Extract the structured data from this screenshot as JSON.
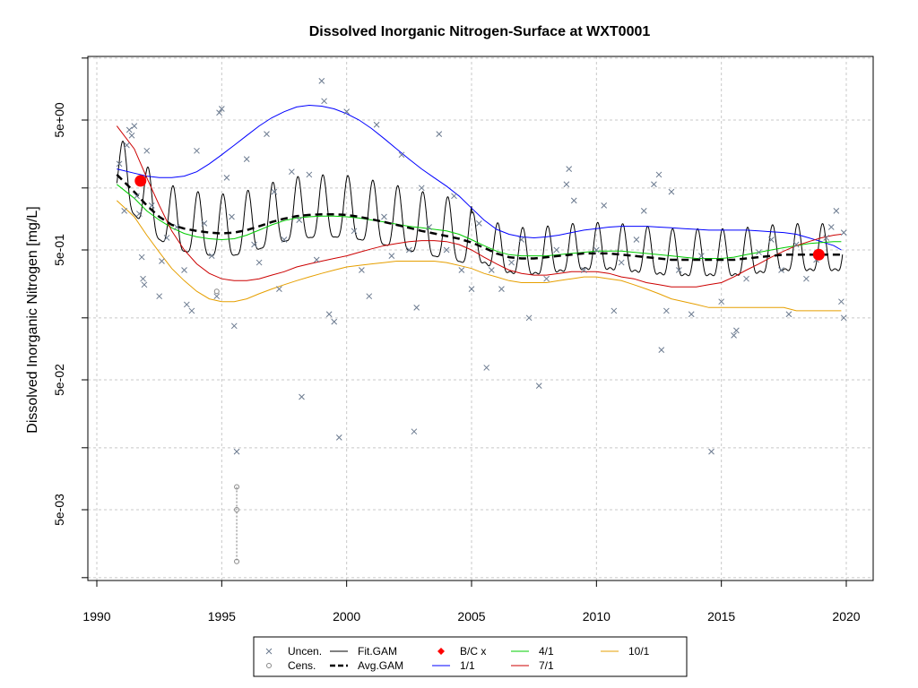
{
  "chart_data": {
    "type": "line",
    "title": "Dissolved Inorganic Nitrogen-Surface at WXT0001",
    "xlabel": "",
    "ylabel": "Dissolved Inorganic Nitrogen [mg/L]",
    "y_scale": "log10",
    "xlim": [
      1990,
      2021
    ],
    "ylim": [
      0.0013,
      12
    ],
    "grid": true,
    "x_ticks": [
      1990,
      1995,
      2000,
      2005,
      2010,
      2015,
      2020
    ],
    "x_tick_labels": [
      "1990",
      "1995",
      "2000",
      "2005",
      "2010",
      "2015",
      "2020"
    ],
    "y_ticks": [
      0.005,
      0.05,
      0.5,
      5
    ],
    "y_tick_labels": [
      "5e-03",
      "5e-02",
      "5e-01",
      "5e+00"
    ],
    "y_minor_ticks": [
      0.0015,
      0.015,
      0.15,
      1.5,
      15
    ],
    "legend": {
      "position": "bottom",
      "entries": [
        {
          "label": "Uncen.",
          "symbol": "cross",
          "color": "#6b7a8f"
        },
        {
          "label": "Cens.",
          "symbol": "circle",
          "color": "#888888"
        },
        {
          "label": "Fit.GAM",
          "symbol": "line",
          "color": "#000000"
        },
        {
          "label": "Avg.GAM",
          "symbol": "dashed",
          "color": "#000000"
        },
        {
          "label": "B/C x",
          "symbol": "diamond",
          "color": "#ff0000"
        },
        {
          "label": "1/1",
          "symbol": "line",
          "color": "#0000ff"
        },
        {
          "label": "4/1",
          "symbol": "line",
          "color": "#00cc00"
        },
        {
          "label": "7/1",
          "symbol": "line",
          "color": "#cc0000"
        },
        {
          "label": "10/1",
          "symbol": "line",
          "color": "#e69f00"
        }
      ]
    },
    "series": [
      {
        "name": "1/1",
        "color": "#0000ff",
        "x": [
          1990.8,
          1991.5,
          1992.0,
          1992.5,
          1993.0,
          1993.5,
          1994.0,
          1994.5,
          1995.0,
          1995.5,
          1996.0,
          1996.5,
          1997.0,
          1997.5,
          1998.0,
          1998.5,
          1999.0,
          1999.5,
          2000.0,
          2000.5,
          2001.0,
          2001.5,
          2002.0,
          2002.5,
          2003.0,
          2003.5,
          2004.0,
          2004.5,
          2005.0,
          2005.5,
          2006.0,
          2006.5,
          2007.0,
          2007.5,
          2008.0,
          2008.5,
          2009.0,
          2009.5,
          2010.0,
          2010.5,
          2011.0,
          2011.5,
          2012.0,
          2012.5,
          2013.0,
          2013.5,
          2014.0,
          2014.5,
          2015.0,
          2015.5,
          2016.0,
          2016.5,
          2017.0,
          2017.5,
          2018.0,
          2018.5,
          2019.0,
          2019.5,
          2019.8
        ],
        "y": [
          2.1,
          1.95,
          1.85,
          1.8,
          1.8,
          1.85,
          2.0,
          2.3,
          2.7,
          3.2,
          3.8,
          4.5,
          5.2,
          5.8,
          6.3,
          6.5,
          6.4,
          6.1,
          5.6,
          5.0,
          4.3,
          3.6,
          3.0,
          2.5,
          2.1,
          1.8,
          1.55,
          1.3,
          1.05,
          0.85,
          0.72,
          0.66,
          0.63,
          0.62,
          0.63,
          0.65,
          0.68,
          0.71,
          0.73,
          0.75,
          0.76,
          0.76,
          0.76,
          0.75,
          0.74,
          0.73,
          0.72,
          0.71,
          0.71,
          0.71,
          0.71,
          0.7,
          0.69,
          0.68,
          0.66,
          0.62,
          0.58,
          0.54,
          0.5
        ]
      },
      {
        "name": "4/1",
        "color": "#00cc00",
        "x": [
          1990.8,
          1991.5,
          1992.0,
          1992.5,
          1993.0,
          1993.5,
          1994.0,
          1994.5,
          1995.0,
          1995.5,
          1996.0,
          1996.5,
          1997.0,
          1997.5,
          1998.0,
          1998.5,
          1999.0,
          1999.5,
          2000.0,
          2000.5,
          2001.0,
          2001.5,
          2002.0,
          2002.5,
          2003.0,
          2003.5,
          2004.0,
          2004.5,
          2005.0,
          2005.5,
          2006.0,
          2006.5,
          2007.0,
          2007.5,
          2008.0,
          2008.5,
          2009.0,
          2009.5,
          2010.0,
          2010.5,
          2011.0,
          2011.5,
          2012.0,
          2012.5,
          2013.0,
          2013.5,
          2014.0,
          2014.5,
          2015.0,
          2015.5,
          2016.0,
          2016.5,
          2017.0,
          2017.5,
          2018.0,
          2018.5,
          2019.0,
          2019.5,
          2019.8
        ],
        "y": [
          1.6,
          1.25,
          1.0,
          0.85,
          0.74,
          0.67,
          0.63,
          0.61,
          0.6,
          0.61,
          0.65,
          0.71,
          0.78,
          0.84,
          0.88,
          0.9,
          0.91,
          0.91,
          0.9,
          0.88,
          0.85,
          0.82,
          0.79,
          0.76,
          0.74,
          0.72,
          0.7,
          0.66,
          0.6,
          0.54,
          0.49,
          0.46,
          0.45,
          0.45,
          0.45,
          0.46,
          0.47,
          0.48,
          0.49,
          0.49,
          0.49,
          0.48,
          0.47,
          0.46,
          0.45,
          0.44,
          0.43,
          0.43,
          0.43,
          0.44,
          0.46,
          0.48,
          0.5,
          0.52,
          0.54,
          0.56,
          0.57,
          0.58,
          0.58
        ]
      },
      {
        "name": "7/1",
        "color": "#cc0000",
        "x": [
          1990.8,
          1991.5,
          1992.0,
          1992.5,
          1993.0,
          1993.5,
          1994.0,
          1994.5,
          1995.0,
          1995.5,
          1996.0,
          1996.5,
          1997.0,
          1997.5,
          1998.0,
          1998.5,
          1999.0,
          1999.5,
          2000.0,
          2000.5,
          2001.0,
          2001.5,
          2002.0,
          2002.5,
          2003.0,
          2003.5,
          2004.0,
          2004.5,
          2005.0,
          2005.5,
          2006.0,
          2006.5,
          2007.0,
          2007.5,
          2008.0,
          2008.5,
          2009.0,
          2009.5,
          2010.0,
          2010.5,
          2011.0,
          2011.5,
          2012.0,
          2012.5,
          2013.0,
          2013.5,
          2014.0,
          2014.5,
          2015.0,
          2015.5,
          2016.0,
          2016.5,
          2017.0,
          2017.5,
          2018.0,
          2018.5,
          2019.0,
          2019.5,
          2019.8
        ],
        "y": [
          4.5,
          3.0,
          1.8,
          1.1,
          0.7,
          0.5,
          0.39,
          0.33,
          0.3,
          0.29,
          0.29,
          0.3,
          0.32,
          0.34,
          0.37,
          0.39,
          0.41,
          0.43,
          0.45,
          0.48,
          0.51,
          0.54,
          0.56,
          0.58,
          0.59,
          0.59,
          0.58,
          0.55,
          0.5,
          0.44,
          0.39,
          0.35,
          0.33,
          0.32,
          0.32,
          0.33,
          0.34,
          0.34,
          0.34,
          0.33,
          0.31,
          0.3,
          0.28,
          0.27,
          0.26,
          0.26,
          0.26,
          0.27,
          0.28,
          0.31,
          0.35,
          0.39,
          0.44,
          0.49,
          0.54,
          0.58,
          0.62,
          0.65,
          0.66
        ]
      },
      {
        "name": "10/1",
        "color": "#e69f00",
        "x": [
          1990.8,
          1991.5,
          1992.0,
          1992.5,
          1993.0,
          1993.5,
          1994.0,
          1994.5,
          1995.0,
          1995.5,
          1996.0,
          1996.5,
          1997.0,
          1997.5,
          1998.0,
          1998.5,
          1999.0,
          1999.5,
          2000.0,
          2000.5,
          2001.0,
          2001.5,
          2002.0,
          2002.5,
          2003.0,
          2003.5,
          2004.0,
          2004.5,
          2005.0,
          2005.5,
          2006.0,
          2006.5,
          2007.0,
          2007.5,
          2008.0,
          2008.5,
          2009.0,
          2009.5,
          2010.0,
          2010.5,
          2011.0,
          2011.5,
          2012.0,
          2012.5,
          2013.0,
          2013.5,
          2014.0,
          2014.5,
          2015.0,
          2015.5,
          2016.0,
          2016.5,
          2017.0,
          2017.5,
          2018.0,
          2018.5,
          2019.0,
          2019.5,
          2019.8
        ],
        "y": [
          1.2,
          0.9,
          0.65,
          0.48,
          0.36,
          0.29,
          0.24,
          0.21,
          0.2,
          0.2,
          0.21,
          0.23,
          0.25,
          0.27,
          0.29,
          0.31,
          0.33,
          0.35,
          0.37,
          0.38,
          0.39,
          0.4,
          0.41,
          0.41,
          0.41,
          0.41,
          0.4,
          0.38,
          0.36,
          0.33,
          0.31,
          0.29,
          0.28,
          0.28,
          0.28,
          0.29,
          0.3,
          0.31,
          0.31,
          0.3,
          0.29,
          0.27,
          0.25,
          0.23,
          0.21,
          0.2,
          0.19,
          0.18,
          0.18,
          0.18,
          0.18,
          0.18,
          0.18,
          0.18,
          0.17,
          0.17,
          0.17,
          0.17,
          0.17
        ]
      },
      {
        "name": "Avg.GAM",
        "color": "#000000",
        "dash": true,
        "x": [
          1990.8,
          1991.5,
          1992.0,
          1992.5,
          1993.0,
          1993.5,
          1994.0,
          1994.5,
          1995.0,
          1995.5,
          1996.0,
          1996.5,
          1997.0,
          1997.5,
          1998.0,
          1998.5,
          1999.0,
          1999.5,
          2000.0,
          2000.5,
          2001.0,
          2001.5,
          2002.0,
          2002.5,
          2003.0,
          2003.5,
          2004.0,
          2004.5,
          2005.0,
          2005.5,
          2006.0,
          2006.5,
          2007.0,
          2007.5,
          2008.0,
          2008.5,
          2009.0,
          2009.5,
          2010.0,
          2010.5,
          2011.0,
          2011.5,
          2012.0,
          2012.5,
          2013.0,
          2013.5,
          2014.0,
          2014.5,
          2015.0,
          2015.5,
          2016.0,
          2016.5,
          2017.0,
          2017.5,
          2018.0,
          2018.5,
          2019.0,
          2019.5,
          2019.8
        ],
        "y": [
          1.9,
          1.4,
          1.1,
          0.9,
          0.78,
          0.73,
          0.7,
          0.68,
          0.67,
          0.68,
          0.71,
          0.76,
          0.82,
          0.87,
          0.91,
          0.93,
          0.94,
          0.94,
          0.93,
          0.9,
          0.86,
          0.82,
          0.78,
          0.74,
          0.7,
          0.67,
          0.64,
          0.61,
          0.57,
          0.52,
          0.47,
          0.44,
          0.43,
          0.43,
          0.44,
          0.45,
          0.46,
          0.47,
          0.47,
          0.47,
          0.46,
          0.45,
          0.44,
          0.43,
          0.42,
          0.42,
          0.42,
          0.42,
          0.42,
          0.42,
          0.43,
          0.44,
          0.45,
          0.46,
          0.46,
          0.46,
          0.46,
          0.46,
          0.46
        ]
      }
    ],
    "fit_gam": {
      "name": "Fit.GAM",
      "color": "#000000",
      "seasonal": true,
      "period_years": 1,
      "peak_month_fraction": 0.05
    },
    "uncensored_points": [
      {
        "x": 1990.9,
        "y": 2.3
      },
      {
        "x": 1991.1,
        "y": 1.0
      },
      {
        "x": 1991.2,
        "y": 3.2
      },
      {
        "x": 1991.3,
        "y": 4.2
      },
      {
        "x": 1991.4,
        "y": 3.8
      },
      {
        "x": 1991.5,
        "y": 4.5
      },
      {
        "x": 1991.6,
        "y": 1.3
      },
      {
        "x": 1991.7,
        "y": 0.95
      },
      {
        "x": 1991.8,
        "y": 0.44
      },
      {
        "x": 1991.85,
        "y": 0.3
      },
      {
        "x": 1991.9,
        "y": 0.27
      },
      {
        "x": 1992.0,
        "y": 2.9
      },
      {
        "x": 1992.2,
        "y": 1.1
      },
      {
        "x": 1992.5,
        "y": 0.22
      },
      {
        "x": 1992.6,
        "y": 0.41
      },
      {
        "x": 1992.8,
        "y": 0.62
      },
      {
        "x": 1993.2,
        "y": 0.75
      },
      {
        "x": 1993.5,
        "y": 0.35
      },
      {
        "x": 1993.6,
        "y": 0.19
      },
      {
        "x": 1993.8,
        "y": 0.17
      },
      {
        "x": 1994.0,
        "y": 2.9
      },
      {
        "x": 1994.3,
        "y": 0.8
      },
      {
        "x": 1994.6,
        "y": 0.45
      },
      {
        "x": 1994.8,
        "y": 0.22
      },
      {
        "x": 1994.9,
        "y": 5.7
      },
      {
        "x": 1995.0,
        "y": 6.1
      },
      {
        "x": 1995.2,
        "y": 1.8
      },
      {
        "x": 1995.4,
        "y": 0.9
      },
      {
        "x": 1995.5,
        "y": 0.13
      },
      {
        "x": 1995.6,
        "y": 0.014
      },
      {
        "x": 1996.0,
        "y": 2.5
      },
      {
        "x": 1996.3,
        "y": 0.55
      },
      {
        "x": 1996.5,
        "y": 0.4
      },
      {
        "x": 1996.8,
        "y": 3.9
      },
      {
        "x": 1997.1,
        "y": 1.4
      },
      {
        "x": 1997.3,
        "y": 0.25
      },
      {
        "x": 1997.5,
        "y": 0.6
      },
      {
        "x": 1997.8,
        "y": 2.0
      },
      {
        "x": 1998.1,
        "y": 0.85
      },
      {
        "x": 1998.5,
        "y": 1.9
      },
      {
        "x": 1998.8,
        "y": 0.42
      },
      {
        "x": 1999.1,
        "y": 7.0
      },
      {
        "x": 1999.3,
        "y": 0.16
      },
      {
        "x": 1999.5,
        "y": 0.14
      },
      {
        "x": 1999.7,
        "y": 0.018
      },
      {
        "x": 1999.0,
        "y": 10.0
      },
      {
        "x": 1998.2,
        "y": 0.037
      },
      {
        "x": 2000.0,
        "y": 5.8
      },
      {
        "x": 2000.3,
        "y": 0.7
      },
      {
        "x": 2000.6,
        "y": 0.35
      },
      {
        "x": 2000.9,
        "y": 0.22
      },
      {
        "x": 2001.2,
        "y": 4.6
      },
      {
        "x": 2001.5,
        "y": 0.9
      },
      {
        "x": 2001.8,
        "y": 0.45
      },
      {
        "x": 2002.2,
        "y": 2.7
      },
      {
        "x": 2002.5,
        "y": 0.5
      },
      {
        "x": 2002.7,
        "y": 0.02
      },
      {
        "x": 2002.8,
        "y": 0.18
      },
      {
        "x": 2003.0,
        "y": 1.5
      },
      {
        "x": 2003.3,
        "y": 0.75
      },
      {
        "x": 2003.7,
        "y": 3.9
      },
      {
        "x": 2004.0,
        "y": 0.5
      },
      {
        "x": 2004.3,
        "y": 1.3
      },
      {
        "x": 2004.6,
        "y": 0.35
      },
      {
        "x": 2005.0,
        "y": 0.25
      },
      {
        "x": 2005.3,
        "y": 0.8
      },
      {
        "x": 2005.6,
        "y": 0.062
      },
      {
        "x": 2005.8,
        "y": 0.35
      },
      {
        "x": 2006.2,
        "y": 0.25
      },
      {
        "x": 2006.6,
        "y": 0.4
      },
      {
        "x": 2007.0,
        "y": 0.6
      },
      {
        "x": 2007.3,
        "y": 0.15
      },
      {
        "x": 2007.7,
        "y": 0.045
      },
      {
        "x": 2008.0,
        "y": 0.3
      },
      {
        "x": 2008.4,
        "y": 0.5
      },
      {
        "x": 2008.8,
        "y": 1.6
      },
      {
        "x": 2008.9,
        "y": 2.1
      },
      {
        "x": 2009.1,
        "y": 1.2
      },
      {
        "x": 2009.5,
        "y": 0.35
      },
      {
        "x": 2010.0,
        "y": 0.5
      },
      {
        "x": 2010.3,
        "y": 1.1
      },
      {
        "x": 2010.7,
        "y": 0.17
      },
      {
        "x": 2011.0,
        "y": 0.4
      },
      {
        "x": 2011.6,
        "y": 0.6
      },
      {
        "x": 2011.9,
        "y": 1.0
      },
      {
        "x": 2012.3,
        "y": 1.6
      },
      {
        "x": 2012.5,
        "y": 1.9
      },
      {
        "x": 2012.6,
        "y": 0.085
      },
      {
        "x": 2012.8,
        "y": 0.17
      },
      {
        "x": 2013.0,
        "y": 1.4
      },
      {
        "x": 2013.3,
        "y": 0.35
      },
      {
        "x": 2013.8,
        "y": 0.16
      },
      {
        "x": 2014.2,
        "y": 0.45
      },
      {
        "x": 2014.6,
        "y": 0.014
      },
      {
        "x": 2015.0,
        "y": 0.2
      },
      {
        "x": 2015.5,
        "y": 0.11
      },
      {
        "x": 2015.6,
        "y": 0.12
      },
      {
        "x": 2016.0,
        "y": 0.3
      },
      {
        "x": 2016.5,
        "y": 0.48
      },
      {
        "x": 2017.0,
        "y": 0.6
      },
      {
        "x": 2017.4,
        "y": 0.35
      },
      {
        "x": 2017.7,
        "y": 0.16
      },
      {
        "x": 2018.0,
        "y": 0.55
      },
      {
        "x": 2018.4,
        "y": 0.3
      },
      {
        "x": 2018.8,
        "y": 0.42
      },
      {
        "x": 2019.2,
        "y": 0.62
      },
      {
        "x": 2019.4,
        "y": 0.75
      },
      {
        "x": 2019.6,
        "y": 1.0
      },
      {
        "x": 2019.8,
        "y": 0.2
      },
      {
        "x": 2019.9,
        "y": 0.15
      },
      {
        "x": 2019.9,
        "y": 0.68
      }
    ],
    "censored_points": [
      {
        "x": 1994.8,
        "y": 0.24
      },
      {
        "x": 1995.6,
        "y": 0.0075
      },
      {
        "x": 1995.6,
        "y": 0.005
      },
      {
        "x": 1995.6,
        "y": 0.002
      }
    ],
    "bc_points": [
      {
        "x": 1991.75,
        "y": 1.7
      },
      {
        "x": 2018.9,
        "y": 0.46
      }
    ]
  }
}
